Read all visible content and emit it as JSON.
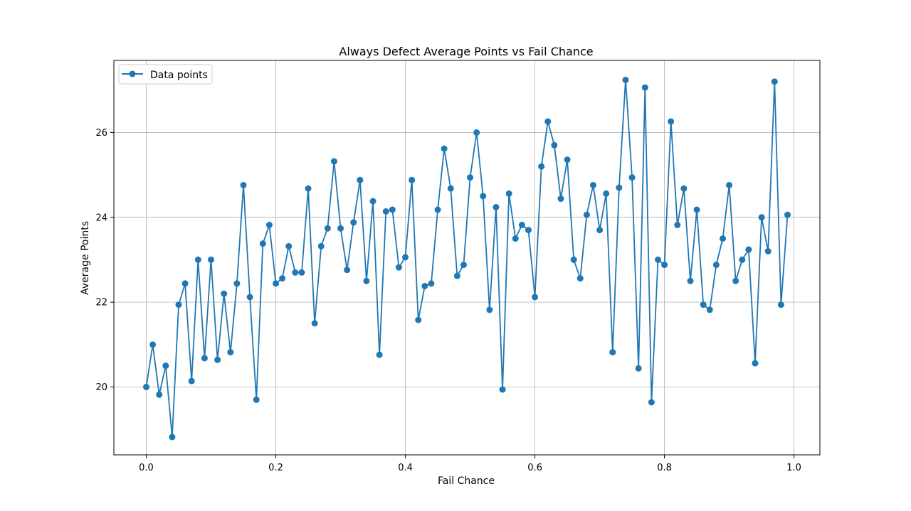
{
  "chart_data": {
    "type": "line",
    "title": "Always Defect Average Points vs Fail Chance",
    "xlabel": "Fail Chance",
    "ylabel": "Average Points",
    "xlim": [
      -0.05,
      1.04
    ],
    "ylim": [
      18.4,
      27.7
    ],
    "xticks": [
      0.0,
      0.2,
      0.4,
      0.6,
      0.8,
      1.0
    ],
    "xtick_labels": [
      "0.0",
      "0.2",
      "0.4",
      "0.6",
      "0.8",
      "1.0"
    ],
    "yticks": [
      20,
      22,
      24,
      26
    ],
    "ytick_labels": [
      "20",
      "22",
      "24",
      "26"
    ],
    "grid": true,
    "legend_position": "top-left",
    "series": [
      {
        "name": "Data points",
        "color": "#1f77b4",
        "marker": "circle",
        "x": [
          0.0,
          0.01,
          0.02,
          0.03,
          0.04,
          0.05,
          0.06,
          0.07,
          0.08,
          0.09,
          0.1,
          0.11,
          0.12,
          0.13,
          0.14,
          0.15,
          0.16,
          0.17,
          0.18,
          0.19,
          0.2,
          0.21,
          0.22,
          0.23,
          0.24,
          0.25,
          0.26,
          0.27,
          0.28,
          0.29,
          0.3,
          0.31,
          0.32,
          0.33,
          0.34,
          0.35,
          0.36,
          0.37,
          0.38,
          0.39,
          0.4,
          0.41,
          0.42,
          0.43,
          0.44,
          0.45,
          0.46,
          0.47,
          0.48,
          0.49,
          0.5,
          0.51,
          0.52,
          0.53,
          0.54,
          0.55,
          0.56,
          0.57,
          0.58,
          0.59,
          0.6,
          0.61,
          0.62,
          0.63,
          0.64,
          0.65,
          0.66,
          0.67,
          0.68,
          0.69,
          0.7,
          0.71,
          0.72,
          0.73,
          0.74,
          0.75,
          0.76,
          0.77,
          0.78,
          0.79,
          0.8,
          0.81,
          0.82,
          0.83,
          0.84,
          0.85,
          0.86,
          0.87,
          0.88,
          0.89,
          0.9,
          0.91,
          0.92,
          0.93,
          0.94,
          0.95,
          0.96,
          0.97,
          0.98,
          0.99
        ],
        "y": [
          20.0,
          21.0,
          19.82,
          20.5,
          18.82,
          21.94,
          22.44,
          20.14,
          23.0,
          20.68,
          23.0,
          20.64,
          22.2,
          20.82,
          22.44,
          24.76,
          22.12,
          19.7,
          23.38,
          23.82,
          22.44,
          22.56,
          23.32,
          22.7,
          22.7,
          24.68,
          21.5,
          23.32,
          23.74,
          25.32,
          23.74,
          22.76,
          23.88,
          24.88,
          22.5,
          24.38,
          20.76,
          24.14,
          24.18,
          22.82,
          23.06,
          24.88,
          21.58,
          22.38,
          22.44,
          24.18,
          25.62,
          24.68,
          22.62,
          22.88,
          24.94,
          26.0,
          24.5,
          21.82,
          24.24,
          19.94,
          24.56,
          23.5,
          23.82,
          23.7,
          22.12,
          25.2,
          26.26,
          25.7,
          24.44,
          25.36,
          23.0,
          22.56,
          24.06,
          24.76,
          23.7,
          24.56,
          20.82,
          24.7,
          27.24,
          24.94,
          20.44,
          27.06,
          19.64,
          23.0,
          22.88,
          26.26,
          23.82,
          24.68,
          22.5,
          24.18,
          21.94,
          21.82,
          22.88,
          23.5,
          24.76,
          22.5,
          23.0,
          23.24,
          20.56,
          24.0,
          23.2,
          27.2,
          21.94,
          24.06
        ]
      }
    ]
  }
}
